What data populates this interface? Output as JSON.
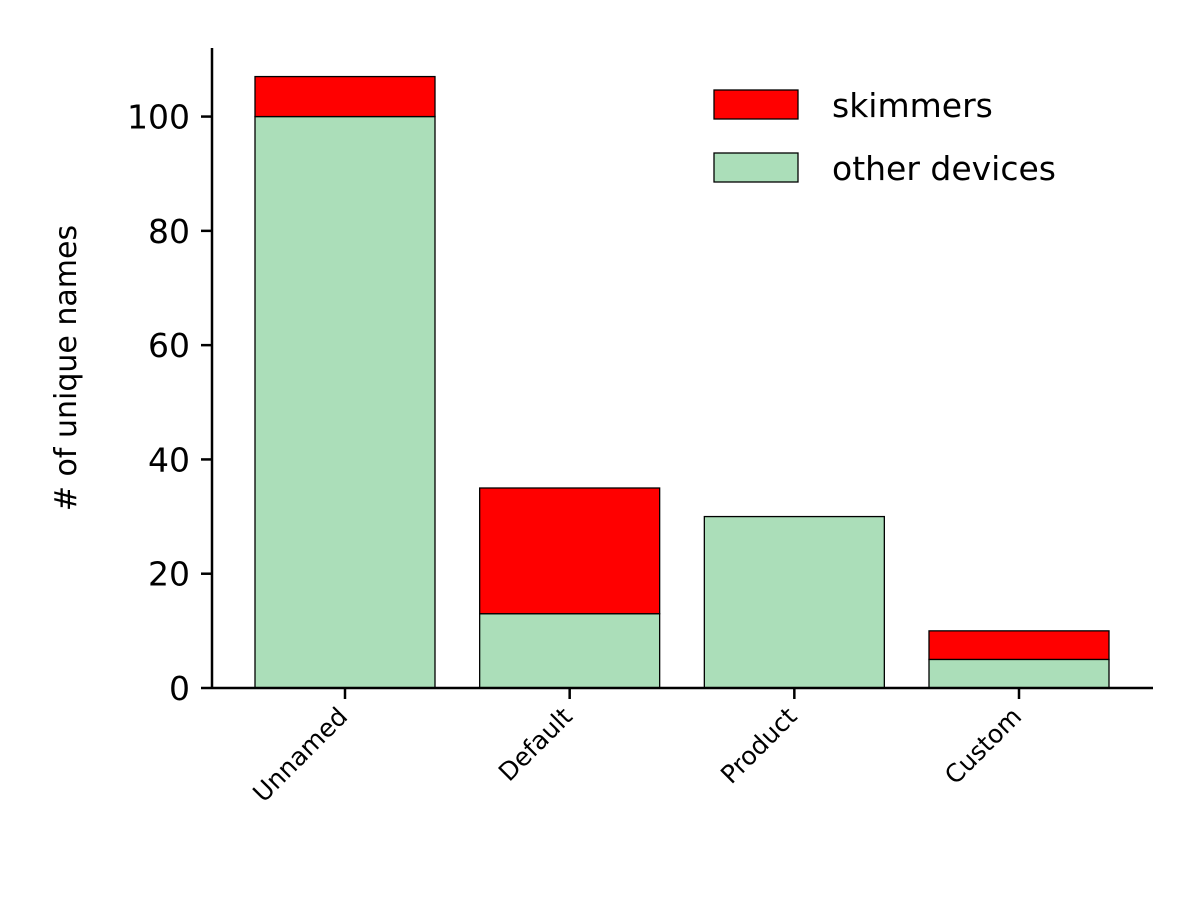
{
  "chart_data": {
    "type": "bar",
    "stacked": true,
    "categories": [
      "Unnamed",
      "Default",
      "Product",
      "Custom"
    ],
    "series": [
      {
        "name": "other devices",
        "values": [
          100,
          13,
          30,
          5
        ],
        "color": "#abdeb9"
      },
      {
        "name": "skimmers",
        "values": [
          7,
          22,
          0,
          5
        ],
        "color": "#ff0000"
      }
    ],
    "ylabel": "# of unique names",
    "xlabel": "",
    "ylim": [
      0,
      112
    ],
    "yticks": [
      0,
      20,
      40,
      60,
      80,
      100
    ],
    "grid": false,
    "legend_position": "top-right",
    "legend_order": [
      "skimmers",
      "other devices"
    ],
    "bar_edge_color": "#000000"
  }
}
